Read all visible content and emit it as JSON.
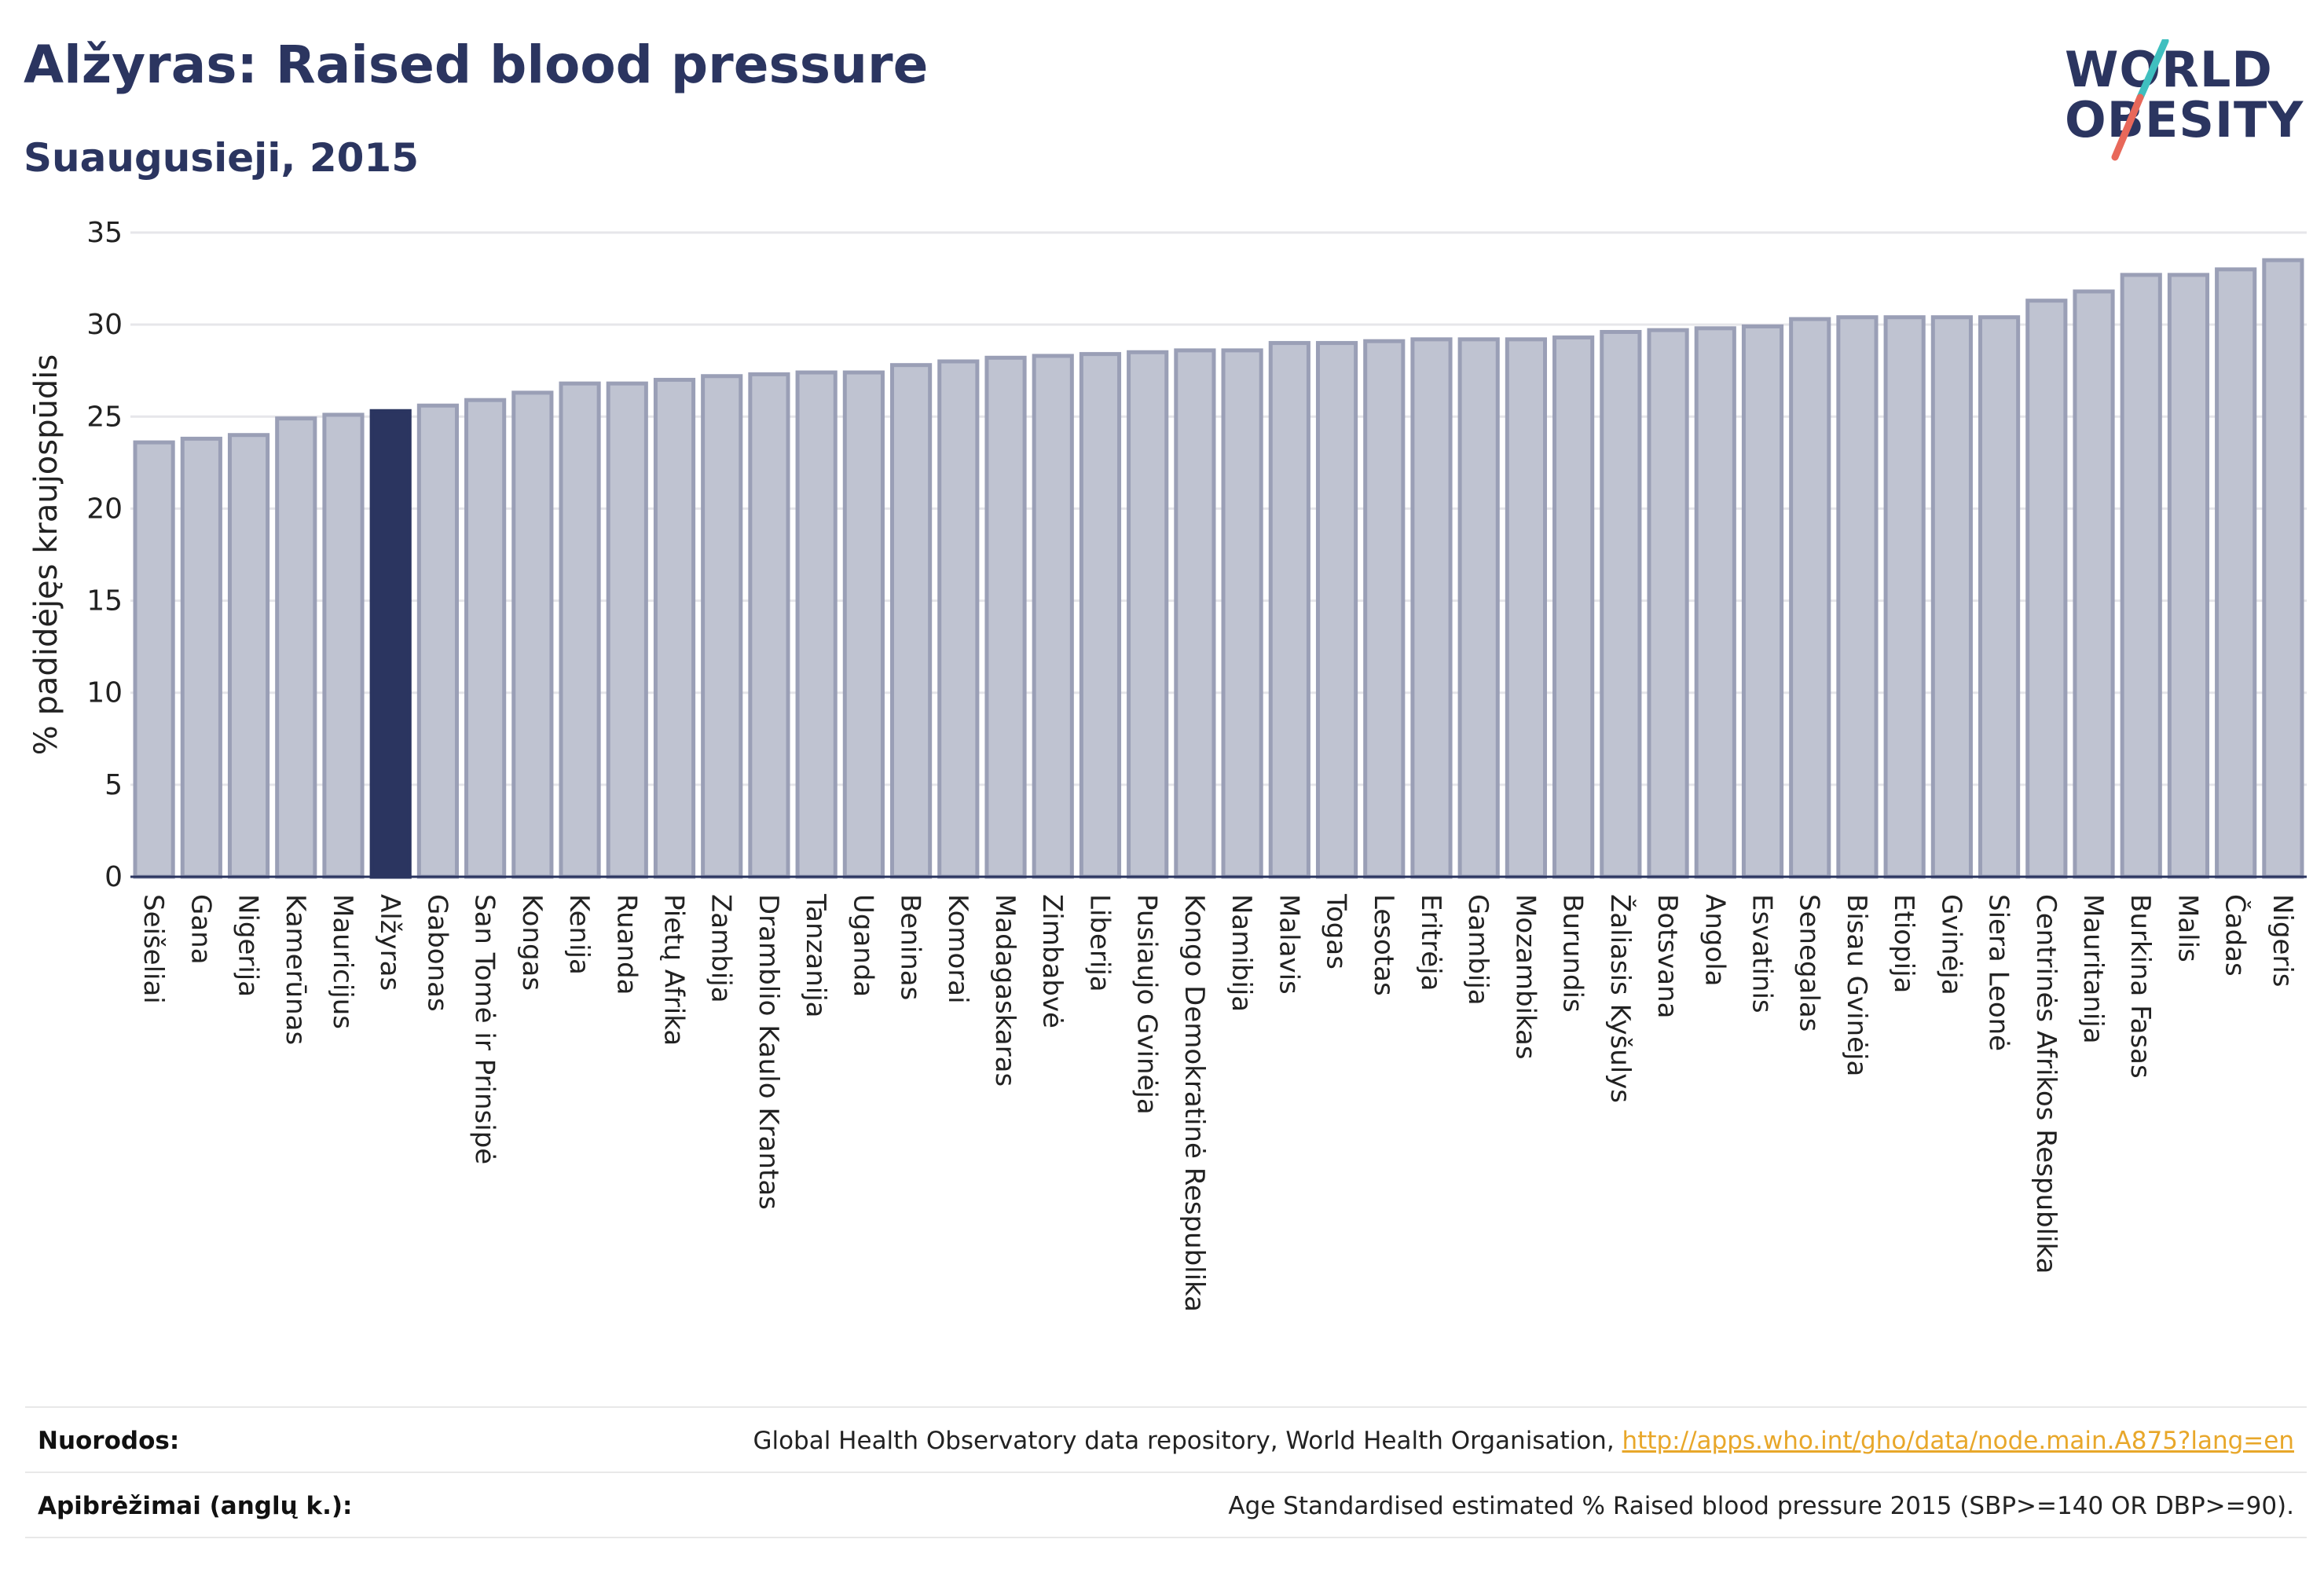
{
  "header": {
    "title": "Alžyras: Raised blood pressure",
    "subtitle": "Suaugusieji, 2015"
  },
  "logo": {
    "line1": "WORLD",
    "line2": "OBESITY",
    "colors": {
      "text": "#2b3560",
      "slash_top": "#3fbfbf",
      "slash_bottom": "#e8685a"
    }
  },
  "footer": {
    "references_label": "Nuorodos:",
    "references_text": "Global Health Observatory data repository, World Health Organisation, ",
    "references_link": "http://apps.who.int/gho/data/node.main.A875?lang=en",
    "definitions_label": "Apibrėžimai (anglų k.):",
    "definitions_text": "Age Standardised estimated % Raised blood pressure 2015 (SBP>=140 OR DBP>=90)."
  },
  "colors": {
    "bar_fill": "#bfc3d1",
    "bar_stroke": "#9a9fb6",
    "highlight_fill": "#2b3560",
    "grid": "#e6e6ea",
    "axis_text": "#222222",
    "zero_line": "#2b3560"
  },
  "chart_data": {
    "type": "bar",
    "title": "Alžyras: Raised blood pressure",
    "subtitle": "Suaugusieji, 2015",
    "xlabel": "",
    "ylabel": "% padidėjęs kraujospūdis",
    "ylim": [
      0,
      35
    ],
    "yticks": [
      0,
      5,
      10,
      15,
      20,
      25,
      30,
      35
    ],
    "grid": true,
    "highlight": "Alžyras",
    "categories": [
      "Seišeliai",
      "Gana",
      "Nigerija",
      "Kamerūnas",
      "Mauricijus",
      "Alžyras",
      "Gabonas",
      "San Tomė ir Prinsipė",
      "Kongas",
      "Kenija",
      "Ruanda",
      "Pietų Afrika",
      "Zambija",
      "Dramblio Kaulo Krantas",
      "Tanzanija",
      "Uganda",
      "Beninas",
      "Komorai",
      "Madagaskaras",
      "Zimbabvė",
      "Liberija",
      "Pusiaujo Gvinėja",
      "Kongo Demokratinė Respublika",
      "Namibija",
      "Malavis",
      "Togas",
      "Lesotas",
      "Eritrėja",
      "Gambija",
      "Mozambikas",
      "Burundis",
      "Žaliasis Kyšulys",
      "Botsvana",
      "Angola",
      "Esvatinis",
      "Senegalas",
      "Bisau Gvinėja",
      "Etiopija",
      "Gvinėja",
      "Siera Leonė",
      "Centrinės Afrikos Respublika",
      "Mauritanija",
      "Burkina Fasas",
      "Malis",
      "Čadas",
      "Nigeris"
    ],
    "values": [
      23.6,
      23.8,
      24.0,
      24.9,
      25.1,
      25.3,
      25.6,
      25.9,
      26.3,
      26.8,
      26.8,
      27.0,
      27.2,
      27.3,
      27.4,
      27.4,
      27.8,
      28.0,
      28.2,
      28.3,
      28.4,
      28.5,
      28.6,
      28.6,
      29.0,
      29.0,
      29.1,
      29.2,
      29.2,
      29.2,
      29.3,
      29.6,
      29.7,
      29.8,
      29.9,
      30.3,
      30.4,
      30.4,
      30.4,
      30.4,
      31.3,
      31.8,
      32.7,
      32.7,
      33.0,
      33.5
    ]
  }
}
